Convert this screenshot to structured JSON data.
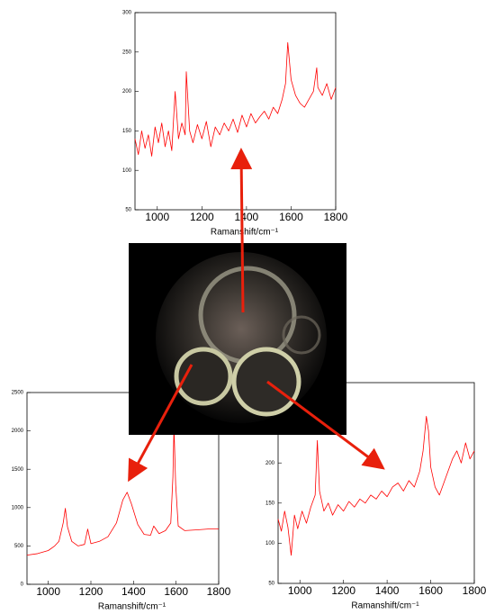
{
  "chart_data": [
    {
      "type": "line",
      "x_label": "Ramanshift/cm⁻¹",
      "x": [
        900,
        915,
        930,
        945,
        960,
        975,
        990,
        1005,
        1020,
        1035,
        1050,
        1065,
        1080,
        1095,
        1110,
        1125,
        1130,
        1145,
        1160,
        1180,
        1200,
        1220,
        1240,
        1260,
        1280,
        1300,
        1320,
        1340,
        1360,
        1380,
        1400,
        1420,
        1440,
        1460,
        1480,
        1500,
        1520,
        1540,
        1560,
        1575,
        1585,
        1600,
        1620,
        1640,
        1660,
        1680,
        1700,
        1715,
        1720,
        1740,
        1760,
        1780,
        1800
      ],
      "values": [
        140,
        120,
        150,
        128,
        145,
        118,
        155,
        135,
        160,
        130,
        150,
        125,
        200,
        140,
        160,
        145,
        225,
        150,
        135,
        158,
        140,
        162,
        130,
        155,
        145,
        160,
        150,
        165,
        148,
        170,
        155,
        172,
        160,
        168,
        175,
        165,
        180,
        172,
        190,
        210,
        262,
        215,
        195,
        185,
        180,
        190,
        200,
        230,
        205,
        195,
        210,
        190,
        205
      ],
      "color": "#ff0000",
      "xlim": [
        900,
        1800
      ],
      "ylim": [
        50,
        300
      ],
      "xticks": [
        1000,
        1200,
        1400,
        1600,
        1800
      ],
      "yticks": [
        50,
        100,
        150,
        200,
        250,
        300
      ]
    },
    {
      "type": "line",
      "x_label": "Ramanshift/cm⁻¹",
      "x": [
        900,
        950,
        1000,
        1030,
        1050,
        1070,
        1080,
        1090,
        1110,
        1140,
        1170,
        1185,
        1200,
        1240,
        1280,
        1320,
        1350,
        1370,
        1390,
        1420,
        1450,
        1480,
        1495,
        1520,
        1550,
        1575,
        1585,
        1590,
        1598,
        1610,
        1640,
        1700,
        1750,
        1800
      ],
      "values": [
        380,
        400,
        440,
        500,
        560,
        800,
        990,
        750,
        560,
        500,
        520,
        720,
        530,
        560,
        620,
        800,
        1100,
        1200,
        1050,
        780,
        650,
        640,
        760,
        660,
        700,
        800,
        1400,
        2050,
        1300,
        760,
        700,
        710,
        720,
        720
      ],
      "color": "#ff0000",
      "xlim": [
        900,
        1800
      ],
      "ylim": [
        0,
        2500
      ],
      "xticks": [
        1000,
        1200,
        1400,
        1600,
        1800
      ],
      "yticks": [
        0,
        500,
        1000,
        1500,
        2000,
        2500
      ]
    },
    {
      "type": "line",
      "x_label": "Ramanshift/cm⁻¹",
      "x": [
        900,
        915,
        930,
        945,
        960,
        975,
        990,
        1010,
        1030,
        1050,
        1070,
        1080,
        1090,
        1110,
        1130,
        1150,
        1175,
        1200,
        1225,
        1250,
        1275,
        1300,
        1325,
        1350,
        1375,
        1400,
        1425,
        1450,
        1475,
        1500,
        1525,
        1550,
        1565,
        1580,
        1590,
        1600,
        1620,
        1640,
        1660,
        1680,
        1700,
        1720,
        1740,
        1760,
        1780,
        1800
      ],
      "values": [
        130,
        115,
        140,
        120,
        85,
        135,
        118,
        140,
        125,
        145,
        160,
        228,
        165,
        140,
        150,
        135,
        148,
        140,
        152,
        145,
        155,
        150,
        160,
        155,
        165,
        158,
        170,
        175,
        165,
        178,
        170,
        190,
        215,
        258,
        240,
        195,
        170,
        160,
        175,
        190,
        205,
        215,
        200,
        225,
        205,
        215
      ],
      "color": "#ff0000",
      "xlim": [
        900,
        1800
      ],
      "ylim": [
        50,
        300
      ],
      "xticks": [
        1000,
        1200,
        1400,
        1600,
        1800
      ],
      "yticks": [
        50,
        100,
        150,
        200
      ]
    }
  ]
}
